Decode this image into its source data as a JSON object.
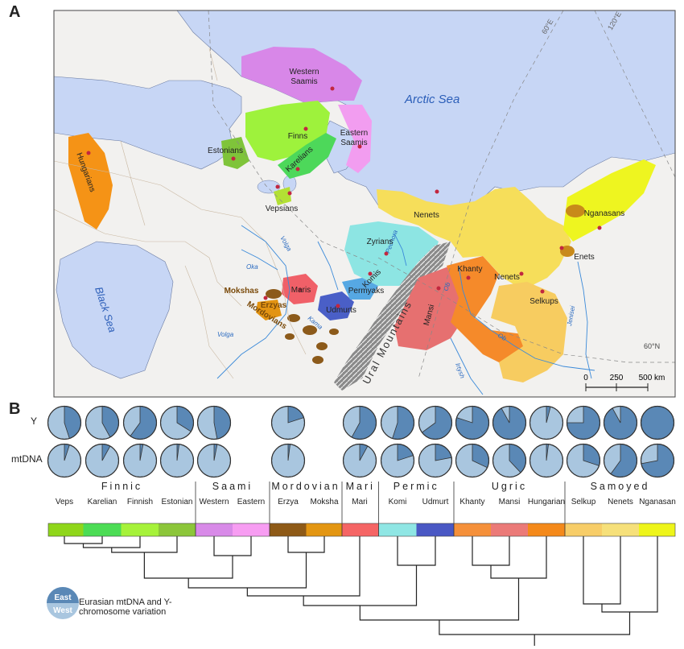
{
  "panels": {
    "a": "A",
    "b": "B"
  },
  "map": {
    "seas": {
      "arctic": "Arctic Sea",
      "black": "Black Sea"
    },
    "meridians": [
      "60°E",
      "120°E"
    ],
    "parallel": "60°N",
    "mountains": "Ural Mountains",
    "rivers": [
      "Volga",
      "Oka",
      "Volga",
      "Kama",
      "Pechora",
      "Ob",
      "Ob",
      "Irtysh",
      "Jenisei"
    ],
    "peoples": [
      {
        "name": "Western Saamis",
        "color": "#d887e8"
      },
      {
        "name": "Eastern Saamis",
        "color": "#f29df0"
      },
      {
        "name": "Finns",
        "color": "#9ef23c"
      },
      {
        "name": "Estonians",
        "color": "#7fc43a"
      },
      {
        "name": "Karelians",
        "color": "#4dd85a"
      },
      {
        "name": "Vepsians",
        "color": "#b3e034"
      },
      {
        "name": "Hungarians",
        "color": "#f59316"
      },
      {
        "name": "Zyrians",
        "color": "#8de5e3"
      },
      {
        "name": "Komis",
        "color": "#8de5e3"
      },
      {
        "name": "Permyaks",
        "color": "#56a8e3"
      },
      {
        "name": "Maris",
        "color": "#f06068"
      },
      {
        "name": "Udmurts",
        "color": "#4a5fc7"
      },
      {
        "name": "Mokshas",
        "color": "#e39413"
      },
      {
        "name": "Erzyas",
        "color": "#8c5a1a"
      },
      {
        "name": "Mordovians",
        "color": "#8c5a1a"
      },
      {
        "name": "Mansi",
        "color": "#e67070"
      },
      {
        "name": "Khanty",
        "color": "#f58a2a"
      },
      {
        "name": "Nenets",
        "color": "#f6de5a"
      },
      {
        "name": "Nenets",
        "color": "#f6de5a"
      },
      {
        "name": "Selkups",
        "color": "#f7cc60"
      },
      {
        "name": "Enets",
        "color": "#c88a1a"
      },
      {
        "name": "Nganasans",
        "color": "#eef520"
      }
    ],
    "scale": {
      "ticks": [
        "0",
        "250",
        "500 km"
      ]
    }
  },
  "chart_data": {
    "type": "pie",
    "description_rows": [
      "Y",
      "mtDNA"
    ],
    "legend": {
      "east": "East",
      "west": "West",
      "caption": "Eurasian mtDNA and Y-chromosome variation"
    },
    "groups": [
      {
        "name": "Finnic",
        "populations": [
          {
            "name": "Veps",
            "color": "#8fd61a",
            "y_east": 0.45,
            "mt_east": 0.05
          },
          {
            "name": "Karelian",
            "color": "#4cdc55",
            "y_east": 0.42,
            "mt_east": 0.08
          },
          {
            "name": "Finnish",
            "color": "#a6f23a",
            "y_east": 0.6,
            "mt_east": 0.03
          },
          {
            "name": "Estonian",
            "color": "#8cc63a",
            "y_east": 0.34,
            "mt_east": 0.02
          }
        ]
      },
      {
        "name": "Saami",
        "populations": [
          {
            "name": "Western",
            "color": "#d88ae8",
            "y_east": 0.47,
            "mt_east": 0.03
          },
          {
            "name": "Eastern",
            "color": "#f79df2",
            "y_east": null,
            "mt_east": null
          }
        ]
      },
      {
        "name": "Mordovian",
        "populations": [
          {
            "name": "Erzya",
            "color": "#8e5a17",
            "y_east": 0.2,
            "mt_east": 0.02
          },
          {
            "name": "Moksha",
            "color": "#e39612",
            "y_east": null,
            "mt_east": null
          }
        ]
      },
      {
        "name": "Mari",
        "populations": [
          {
            "name": "Mari",
            "color": "#f56565",
            "y_east": 0.58,
            "mt_east": 0.08
          }
        ]
      },
      {
        "name": "Permic",
        "populations": [
          {
            "name": "Komi",
            "color": "#8fe6e4",
            "y_east": 0.55,
            "mt_east": 0.2
          },
          {
            "name": "Udmurt",
            "color": "#4a58c4",
            "y_east": 0.65,
            "mt_east": 0.22
          }
        ]
      },
      {
        "name": "Ugric",
        "populations": [
          {
            "name": "Khanty",
            "color": "#f5903a",
            "y_east": 0.8,
            "mt_east": 0.32
          },
          {
            "name": "Mansi",
            "color": "#eb7a78",
            "y_east": 0.92,
            "mt_east": 0.38
          },
          {
            "name": "Hungarian",
            "color": "#f4891a",
            "y_east": 0.04,
            "mt_east": 0.02
          }
        ]
      },
      {
        "name": "Samoyed",
        "populations": [
          {
            "name": "Selkup",
            "color": "#f7cd68",
            "y_east": 0.75,
            "mt_east": 0.3
          },
          {
            "name": "Nenets",
            "color": "#f6e07a",
            "y_east": 0.92,
            "mt_east": 0.6
          },
          {
            "name": "Nganasan",
            "color": "#eef51a",
            "y_east": 1.0,
            "mt_east": 0.72
          }
        ]
      }
    ]
  }
}
